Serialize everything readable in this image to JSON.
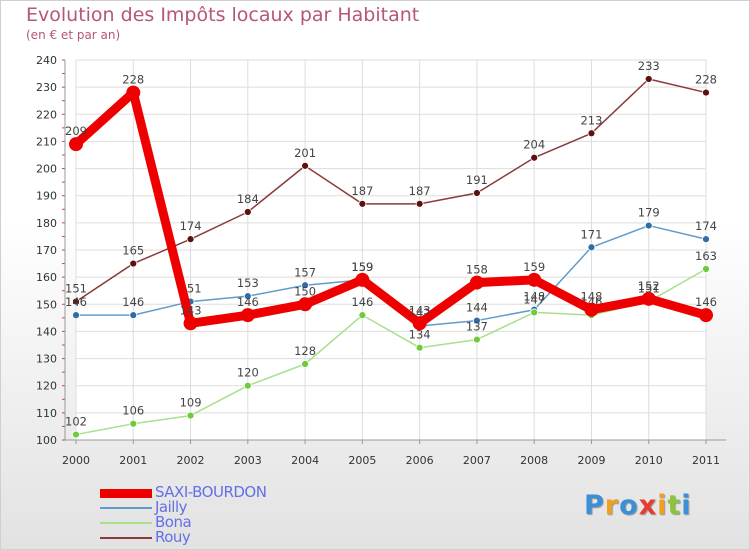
{
  "title": "Evolution des Impôts locaux par Habitant",
  "subtitle": "(en € et par an)",
  "chart_data": {
    "type": "line",
    "x": [
      "2000",
      "2001",
      "2002",
      "2003",
      "2004",
      "2005",
      "2006",
      "2007",
      "2008",
      "2009",
      "2010",
      "2011"
    ],
    "ylim": [
      100,
      240
    ],
    "yticks": [
      "100",
      "110",
      "120",
      "130",
      "140",
      "150",
      "160",
      "170",
      "180",
      "190",
      "200",
      "210",
      "220",
      "230",
      "240"
    ],
    "grid": true,
    "series": [
      {
        "name": "Rouy",
        "color": "#8b3a3a",
        "marker": "#5c1010",
        "values": [
          151,
          165,
          174,
          184,
          201,
          187,
          187,
          191,
          204,
          213,
          233,
          228
        ]
      },
      {
        "name": "Jailly",
        "color": "#5f9ccc",
        "marker": "#2e6da8",
        "values": [
          146,
          146,
          151,
          153,
          157,
          159,
          142,
          144,
          148,
          171,
          179,
          174
        ]
      },
      {
        "name": "Bona",
        "color": "#a8e08c",
        "marker": "#6ecb3a",
        "values": [
          102,
          106,
          109,
          120,
          128,
          146,
          134,
          137,
          147,
          146,
          151,
          163
        ]
      },
      {
        "name": "SAXI-BOURDON",
        "color": "#ee0000",
        "marker": "#ee0000",
        "values": [
          209,
          228,
          143,
          146,
          150,
          159,
          143,
          158,
          159,
          148,
          152,
          146
        ]
      }
    ],
    "legend_order": [
      "SAXI-BOURDON",
      "Jailly",
      "Bona",
      "Rouy"
    ],
    "legend_position": "bottom-left"
  },
  "legend": {
    "items": [
      {
        "label": "SAXI-BOURDON",
        "color": "#ee0000"
      },
      {
        "label": "Jailly",
        "color": "#5f9ccc"
      },
      {
        "label": "Bona",
        "color": "#a8e08c"
      },
      {
        "label": "Rouy",
        "color": "#8b3a3a"
      }
    ]
  },
  "logo": {
    "letters": [
      "P",
      "r",
      "o",
      "x",
      "i",
      "t",
      "i"
    ],
    "colors": [
      "#3a8fd6",
      "#f0a020",
      "#3a8fd6",
      "#e83a30",
      "#f0a020",
      "#8cc43c",
      "#3a8fd6"
    ]
  }
}
